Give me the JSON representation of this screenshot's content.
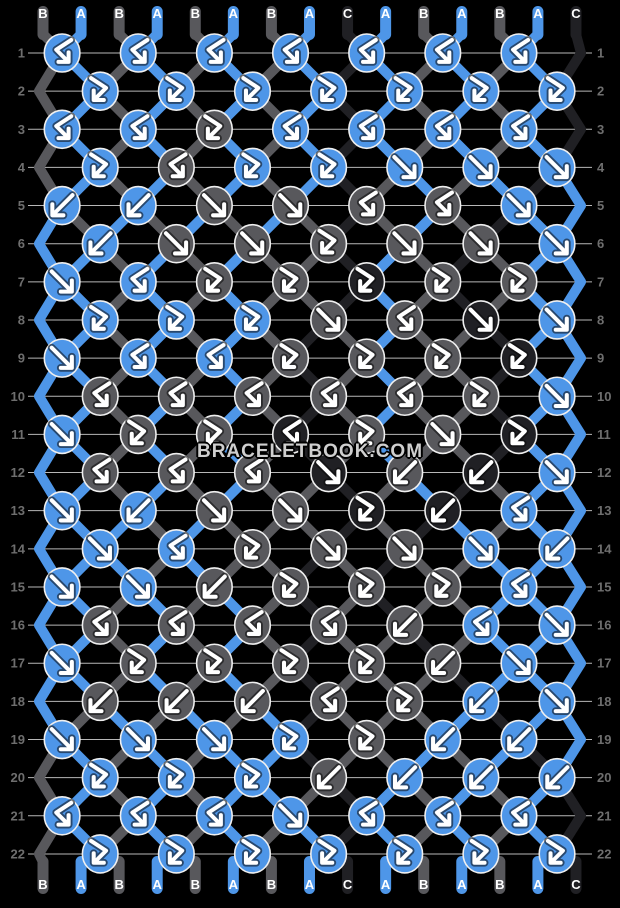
{
  "watermark": "BRACELETBOOK.COM",
  "palette": {
    "A": "#4e96e8",
    "B": "#58585c",
    "C": "#202024",
    "line": "#d8d8d8",
    "number": "#6e6e6e",
    "letter": "#ffffff",
    "knot_border": "#efefef",
    "arrow": "#ffffff",
    "arrow_outline": "#0a0a0a",
    "background": "#000000"
  },
  "strands": {
    "top": [
      "B",
      "A",
      "B",
      "A",
      "B",
      "A",
      "B",
      "A",
      "C",
      "A",
      "B",
      "A",
      "B",
      "A",
      "C"
    ],
    "bottom": [
      "B",
      "A",
      "B",
      "A",
      "B",
      "A",
      "B",
      "A",
      "C",
      "A",
      "B",
      "A",
      "B",
      "A",
      "C"
    ]
  },
  "rows": [
    {
      "n": 1,
      "knots": [
        [
          "A",
          "bf"
        ],
        [
          "A",
          "bf"
        ],
        [
          "A",
          "bf"
        ],
        [
          "A",
          "bf"
        ],
        [
          "A",
          "bf"
        ],
        [
          "A",
          "bf"
        ],
        [
          "A",
          "bf"
        ]
      ]
    },
    {
      "n": 2,
      "knots": [
        [
          "A",
          "fb"
        ],
        [
          "A",
          "fb"
        ],
        [
          "A",
          "fb"
        ],
        [
          "A",
          "fb"
        ],
        [
          "A",
          "fb"
        ],
        [
          "A",
          "fb"
        ],
        [
          "A",
          "fb"
        ]
      ]
    },
    {
      "n": 3,
      "knots": [
        [
          "A",
          "bf"
        ],
        [
          "A",
          "bf"
        ],
        [
          "B",
          "fb"
        ],
        [
          "A",
          "bf"
        ],
        [
          "A",
          "bf"
        ],
        [
          "A",
          "bf"
        ],
        [
          "A",
          "bf"
        ]
      ]
    },
    {
      "n": 4,
      "knots": [
        [
          "A",
          "fb"
        ],
        [
          "B",
          "bf"
        ],
        [
          "A",
          "fb"
        ],
        [
          "A",
          "fb"
        ],
        [
          "A",
          "f"
        ],
        [
          "A",
          "f"
        ],
        [
          "A",
          "f"
        ]
      ]
    },
    {
      "n": 5,
      "knots": [
        [
          "A",
          "b"
        ],
        [
          "A",
          "b"
        ],
        [
          "B",
          "f"
        ],
        [
          "B",
          "f"
        ],
        [
          "B",
          "bf"
        ],
        [
          "B",
          "bf"
        ],
        [
          "A",
          "f"
        ]
      ]
    },
    {
      "n": 6,
      "knots": [
        [
          "A",
          "b"
        ],
        [
          "B",
          "f"
        ],
        [
          "B",
          "f"
        ],
        [
          "B",
          "fb"
        ],
        [
          "B",
          "f"
        ],
        [
          "B",
          "f"
        ],
        [
          "A",
          "f"
        ]
      ]
    },
    {
      "n": 7,
      "knots": [
        [
          "A",
          "f"
        ],
        [
          "A",
          "bf"
        ],
        [
          "B",
          "fb"
        ],
        [
          "B",
          "fb"
        ],
        [
          "C",
          "fb"
        ],
        [
          "B",
          "fb"
        ],
        [
          "B",
          "fb"
        ]
      ]
    },
    {
      "n": 8,
      "knots": [
        [
          "A",
          "fb"
        ],
        [
          "A",
          "fb"
        ],
        [
          "A",
          "fb"
        ],
        [
          "B",
          "f"
        ],
        [
          "B",
          "bf"
        ],
        [
          "C",
          "f"
        ],
        [
          "A",
          "f"
        ]
      ]
    },
    {
      "n": 9,
      "knots": [
        [
          "A",
          "f"
        ],
        [
          "A",
          "bf"
        ],
        [
          "A",
          "bf"
        ],
        [
          "B",
          "fb"
        ],
        [
          "B",
          "fb"
        ],
        [
          "B",
          "fb"
        ],
        [
          "C",
          "fb"
        ]
      ]
    },
    {
      "n": 10,
      "knots": [
        [
          "B",
          "bf"
        ],
        [
          "B",
          "bf"
        ],
        [
          "B",
          "bf"
        ],
        [
          "B",
          "bf"
        ],
        [
          "B",
          "bf"
        ],
        [
          "B",
          "fb"
        ],
        [
          "A",
          "f"
        ]
      ]
    },
    {
      "n": 11,
      "knots": [
        [
          "A",
          "f"
        ],
        [
          "B",
          "fb"
        ],
        [
          "B",
          "fb"
        ],
        [
          "C",
          "bf"
        ],
        [
          "B",
          "fb"
        ],
        [
          "B",
          "f"
        ],
        [
          "C",
          "fb"
        ]
      ]
    },
    {
      "n": 12,
      "knots": [
        [
          "B",
          "bf"
        ],
        [
          "B",
          "bf"
        ],
        [
          "B",
          "bf"
        ],
        [
          "C",
          "f"
        ],
        [
          "B",
          "b"
        ],
        [
          "C",
          "b"
        ],
        [
          "A",
          "f"
        ]
      ]
    },
    {
      "n": 13,
      "knots": [
        [
          "A",
          "f"
        ],
        [
          "A",
          "b"
        ],
        [
          "B",
          "f"
        ],
        [
          "B",
          "f"
        ],
        [
          "C",
          "fb"
        ],
        [
          "C",
          "b"
        ],
        [
          "A",
          "bf"
        ]
      ]
    },
    {
      "n": 14,
      "knots": [
        [
          "A",
          "f"
        ],
        [
          "A",
          "bf"
        ],
        [
          "B",
          "fb"
        ],
        [
          "B",
          "f"
        ],
        [
          "B",
          "f"
        ],
        [
          "A",
          "f"
        ],
        [
          "A",
          "b"
        ]
      ]
    },
    {
      "n": 15,
      "knots": [
        [
          "A",
          "f"
        ],
        [
          "A",
          "f"
        ],
        [
          "B",
          "b"
        ],
        [
          "B",
          "fb"
        ],
        [
          "B",
          "fb"
        ],
        [
          "B",
          "fb"
        ],
        [
          "A",
          "bf"
        ]
      ]
    },
    {
      "n": 16,
      "knots": [
        [
          "B",
          "bf"
        ],
        [
          "B",
          "bf"
        ],
        [
          "B",
          "bf"
        ],
        [
          "B",
          "bf"
        ],
        [
          "B",
          "b"
        ],
        [
          "A",
          "bf"
        ],
        [
          "A",
          "f"
        ]
      ]
    },
    {
      "n": 17,
      "knots": [
        [
          "A",
          "f"
        ],
        [
          "B",
          "fb"
        ],
        [
          "B",
          "fb"
        ],
        [
          "B",
          "fb"
        ],
        [
          "B",
          "fb"
        ],
        [
          "B",
          "b"
        ],
        [
          "A",
          "f"
        ]
      ]
    },
    {
      "n": 18,
      "knots": [
        [
          "B",
          "b"
        ],
        [
          "B",
          "b"
        ],
        [
          "B",
          "b"
        ],
        [
          "B",
          "bf"
        ],
        [
          "B",
          "fb"
        ],
        [
          "A",
          "b"
        ],
        [
          "A",
          "f"
        ]
      ]
    },
    {
      "n": 19,
      "knots": [
        [
          "A",
          "f"
        ],
        [
          "A",
          "f"
        ],
        [
          "A",
          "f"
        ],
        [
          "A",
          "fb"
        ],
        [
          "B",
          "fb"
        ],
        [
          "A",
          "b"
        ],
        [
          "A",
          "b"
        ]
      ]
    },
    {
      "n": 20,
      "knots": [
        [
          "A",
          "fb"
        ],
        [
          "A",
          "fb"
        ],
        [
          "A",
          "fb"
        ],
        [
          "B",
          "b"
        ],
        [
          "A",
          "b"
        ],
        [
          "A",
          "b"
        ],
        [
          "A",
          "b"
        ]
      ]
    },
    {
      "n": 21,
      "knots": [
        [
          "A",
          "bf"
        ],
        [
          "A",
          "bf"
        ],
        [
          "A",
          "bf"
        ],
        [
          "A",
          "f"
        ],
        [
          "A",
          "bf"
        ],
        [
          "A",
          "bf"
        ],
        [
          "A",
          "bf"
        ]
      ]
    },
    {
      "n": 22,
      "knots": [
        [
          "A",
          "fb"
        ],
        [
          "A",
          "fb"
        ],
        [
          "A",
          "fb"
        ],
        [
          "A",
          "fb"
        ],
        [
          "A",
          "fb"
        ],
        [
          "A",
          "fb"
        ],
        [
          "A",
          "fb"
        ]
      ]
    }
  ]
}
